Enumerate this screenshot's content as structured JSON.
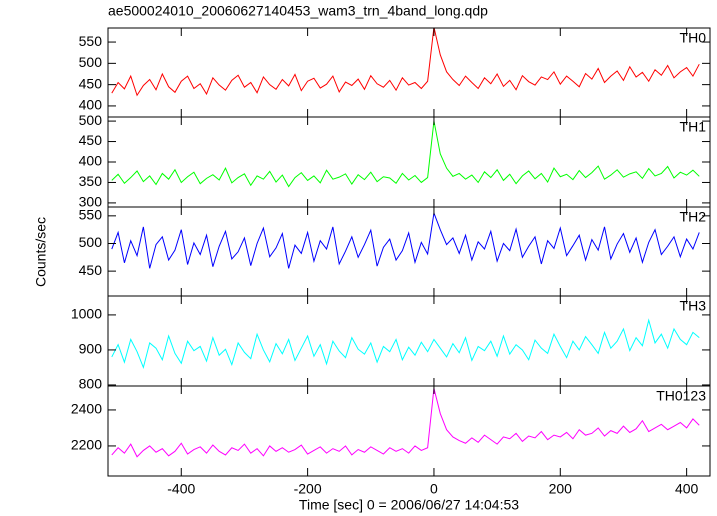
{
  "chart_data": {
    "type": "line",
    "title": "ae500024010_20060627140453_wam3_trn_4band_long.qdp",
    "xlabel": "Time [sec] 0 = 2006/06/27 14:04:53",
    "ylabel": "Counts/sec",
    "xlim": [
      -516,
      437
    ],
    "xticks": [
      -400,
      -200,
      0,
      200,
      400
    ],
    "x": [
      -510,
      -500,
      -490,
      -480,
      -470,
      -460,
      -450,
      -440,
      -430,
      -420,
      -410,
      -400,
      -390,
      -380,
      -370,
      -360,
      -350,
      -340,
      -330,
      -320,
      -310,
      -300,
      -290,
      -280,
      -270,
      -260,
      -250,
      -240,
      -230,
      -220,
      -210,
      -200,
      -190,
      -180,
      -170,
      -160,
      -150,
      -140,
      -130,
      -120,
      -110,
      -100,
      -90,
      -80,
      -70,
      -60,
      -50,
      -40,
      -30,
      -20,
      -10,
      0,
      10,
      20,
      30,
      40,
      50,
      60,
      70,
      80,
      90,
      100,
      110,
      120,
      130,
      140,
      150,
      160,
      170,
      180,
      190,
      200,
      210,
      220,
      230,
      240,
      250,
      260,
      270,
      280,
      290,
      300,
      310,
      320,
      330,
      340,
      350,
      360,
      370,
      380,
      390,
      400,
      410,
      420
    ],
    "series": [
      {
        "name": "TH0",
        "color": "#ff0000",
        "ylim": [
          374,
          583
        ],
        "yticks": [
          400,
          450,
          500,
          550
        ],
        "values": [
          430,
          455,
          440,
          470,
          425,
          448,
          462,
          438,
          475,
          445,
          432,
          458,
          470,
          441,
          452,
          428,
          466,
          449,
          437,
          460,
          472,
          444,
          455,
          431,
          468,
          450,
          439,
          462,
          447,
          474,
          436,
          458,
          465,
          442,
          451,
          470,
          433,
          456,
          448,
          463,
          439,
          471,
          452,
          444,
          460,
          437,
          466,
          449,
          455,
          441,
          458,
          585,
          520,
          480,
          462,
          448,
          470,
          455,
          441,
          466,
          452,
          475,
          446,
          460,
          438,
          471,
          457,
          449,
          468,
          462,
          480,
          451,
          470,
          458,
          445,
          476,
          463,
          488,
          455,
          470,
          482,
          460,
          492,
          468,
          479,
          458,
          485,
          472,
          495,
          466,
          480,
          490,
          470,
          498
        ]
      },
      {
        "name": "TH1",
        "color": "#00ff00",
        "ylim": [
          290,
          510
        ],
        "yticks": [
          300,
          350,
          400,
          450,
          500
        ],
        "values": [
          355,
          370,
          348,
          362,
          378,
          352,
          366,
          345,
          372,
          358,
          381,
          350,
          364,
          375,
          347,
          360,
          369,
          356,
          385,
          349,
          362,
          371,
          343,
          366,
          358,
          377,
          351,
          368,
          340,
          362,
          374,
          355,
          366,
          349,
          380,
          358,
          363,
          371,
          346,
          369,
          357,
          375,
          352,
          364,
          361,
          348,
          372,
          356,
          367,
          350,
          362,
          500,
          420,
          385,
          365,
          372,
          358,
          368,
          350,
          376,
          362,
          381,
          355,
          370,
          347,
          366,
          378,
          359,
          372,
          351,
          385,
          364,
          370,
          357,
          379,
          362,
          374,
          390,
          358,
          368,
          381,
          363,
          371,
          376,
          360,
          384,
          366,
          372,
          389,
          361,
          375,
          368,
          380,
          365
        ]
      },
      {
        "name": "TH2",
        "color": "#0000ff",
        "ylim": [
          405,
          566
        ],
        "yticks": [
          450,
          500,
          550
        ],
        "values": [
          490,
          520,
          465,
          505,
          478,
          530,
          455,
          498,
          512,
          470,
          488,
          525,
          462,
          501,
          480,
          515,
          458,
          495,
          522,
          472,
          485,
          510,
          460,
          500,
          528,
          476,
          492,
          518,
          455,
          497,
          482,
          520,
          468,
          505,
          490,
          530,
          463,
          486,
          512,
          475,
          498,
          524,
          459,
          493,
          508,
          470,
          487,
          519,
          466,
          502,
          481,
          555,
          525,
          498,
          510,
          482,
          515,
          470,
          503,
          490,
          522,
          468,
          500,
          487,
          526,
          475,
          495,
          512,
          463,
          505,
          491,
          528,
          478,
          496,
          515,
          470,
          507,
          488,
          530,
          472,
          499,
          518,
          484,
          510,
          466,
          502,
          525,
          480,
          495,
          512,
          476,
          508,
          490,
          520
        ]
      },
      {
        "name": "TH3",
        "color": "#00ffff",
        "ylim": [
          797,
          1054
        ],
        "yticks": [
          800,
          900,
          1000
        ],
        "values": [
          880,
          915,
          865,
          930,
          895,
          850,
          920,
          905,
          872,
          940,
          890,
          862,
          925,
          898,
          910,
          868,
          935,
          885,
          902,
          858,
          920,
          893,
          875,
          945,
          900,
          866,
          918,
          889,
          930,
          870,
          905,
          940,
          882,
          915,
          860,
          925,
          897,
          878,
          935,
          902,
          888,
          920,
          865,
          910,
          895,
          930,
          872,
          908,
          885,
          922,
          895,
          930,
          905,
          880,
          918,
          892,
          935,
          870,
          910,
          898,
          925,
          882,
          940,
          888,
          915,
          900,
          872,
          928,
          905,
          890,
          945,
          910,
          878,
          925,
          900,
          938,
          915,
          890,
          950,
          905,
          925,
          960,
          898,
          935,
          912,
          985,
          920,
          945,
          905,
          960,
          930,
          915,
          950,
          935
        ]
      },
      {
        "name": "TH0123",
        "color": "#ff00ff",
        "ylim": [
          2033,
          2533
        ],
        "yticks": [
          2200,
          2400
        ],
        "values": [
          2150,
          2190,
          2160,
          2210,
          2140,
          2175,
          2200,
          2165,
          2185,
          2145,
          2170,
          2215,
          2155,
          2180,
          2195,
          2160,
          2205,
          2170,
          2150,
          2190,
          2175,
          2210,
          2160,
          2185,
          2145,
          2200,
          2170,
          2190,
          2165,
          2180,
          2205,
          2155,
          2175,
          2195,
          2160,
          2185,
          2170,
          2200,
          2150,
          2180,
          2165,
          2195,
          2175,
          2155,
          2190,
          2170,
          2185,
          2160,
          2200,
          2175,
          2190,
          2520,
          2380,
          2290,
          2250,
          2230,
          2215,
          2245,
          2220,
          2260,
          2235,
          2210,
          2250,
          2240,
          2270,
          2225,
          2255,
          2245,
          2280,
          2235,
          2260,
          2250,
          2275,
          2240,
          2290,
          2260,
          2270,
          2300,
          2255,
          2285,
          2270,
          2310,
          2275,
          2295,
          2340,
          2280,
          2300,
          2320,
          2290,
          2310,
          2330,
          2300,
          2350,
          2315
        ]
      }
    ]
  }
}
